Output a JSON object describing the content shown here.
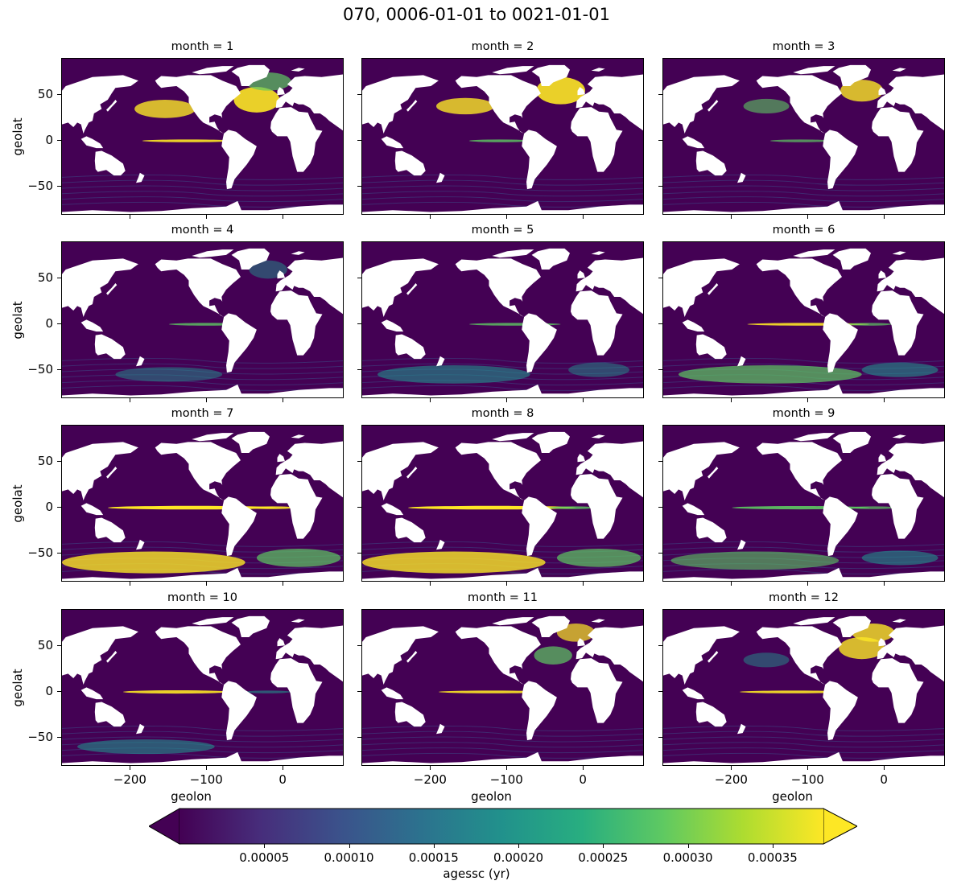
{
  "figure": {
    "title": "070, 0006-01-01 to 0021-01-01"
  },
  "chart_data": {
    "type": "heatmap",
    "layout": "faceted 4x3 grid of maps",
    "variable": "agessc",
    "facet_titles": [
      "month = 1",
      "month = 2",
      "month = 3",
      "month = 4",
      "month = 5",
      "month = 6",
      "month = 7",
      "month = 8",
      "month = 9",
      "month = 10",
      "month = 11",
      "month = 12"
    ],
    "xlabel": "geolon",
    "ylabel": "geolat",
    "xlim": [
      -290,
      80
    ],
    "ylim": [
      -82,
      90
    ],
    "xticks": [
      -200,
      -100,
      0
    ],
    "xtick_labels": [
      "−200",
      "−100",
      "0"
    ],
    "yticks": [
      50,
      0,
      -50
    ],
    "ytick_labels": [
      "50",
      "0",
      "−50"
    ],
    "colorbar": {
      "label": "agessc (yr)",
      "colormap": "viridis",
      "extend": "both",
      "vmin": 0.0,
      "vmax": 0.00038,
      "ticks": [
        5e-05,
        0.0001,
        0.00015,
        0.0002,
        0.00025,
        0.0003,
        0.00035
      ],
      "tick_labels": [
        "0.00005",
        "0.00010",
        "0.00015",
        "0.00020",
        "0.00025",
        "0.00030",
        "0.00035"
      ]
    },
    "colors": {
      "low": "#440154",
      "mid": "#21918c",
      "high": "#fde725",
      "land": "#ffffff"
    }
  }
}
